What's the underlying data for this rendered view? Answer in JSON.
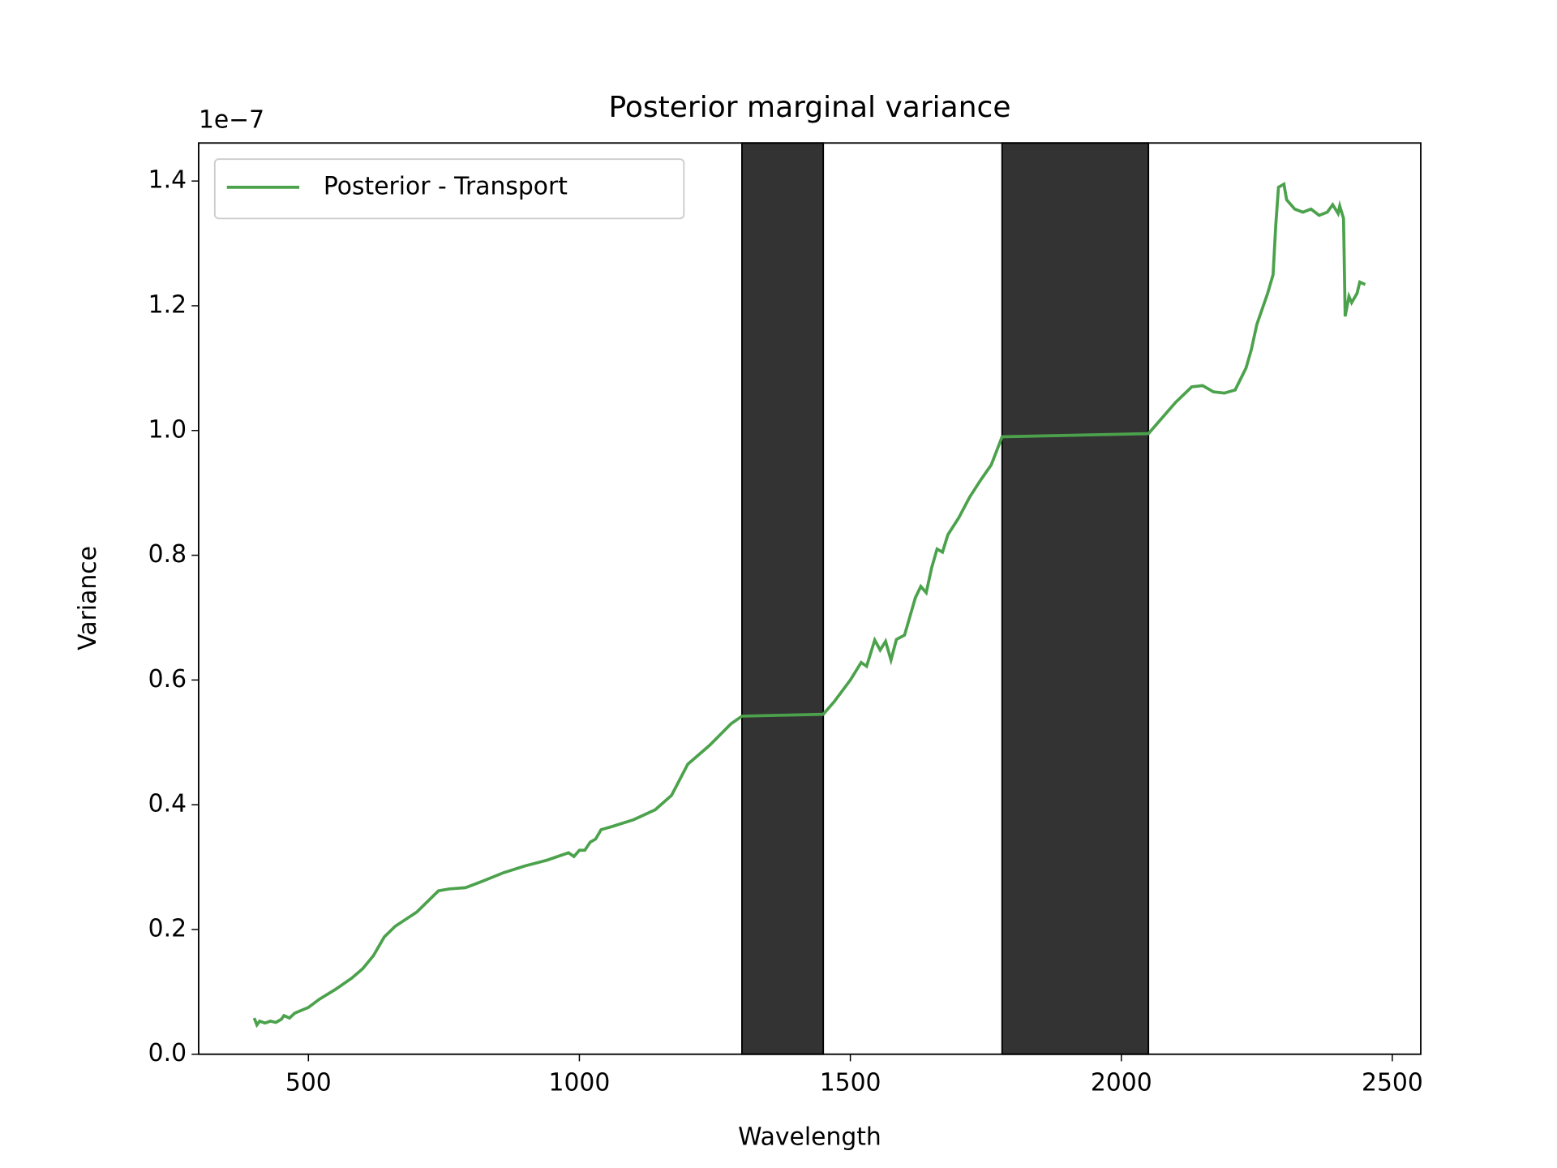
{
  "chart_data": {
    "type": "line",
    "title": "Posterior marginal variance",
    "xlabel": "Wavelength",
    "ylabel": "Variance",
    "y_offset_label": "1e−7",
    "x": [
      400,
      405,
      410,
      420,
      430,
      440,
      450,
      455,
      465,
      475,
      500,
      520,
      550,
      580,
      600,
      620,
      640,
      660,
      700,
      740,
      760,
      790,
      820,
      860,
      900,
      940,
      980,
      990,
      1000,
      1010,
      1020,
      1030,
      1040,
      1060,
      1100,
      1140,
      1170,
      1200,
      1240,
      1280,
      1300,
      1450,
      1470,
      1500,
      1520,
      1530,
      1545,
      1555,
      1565,
      1575,
      1585,
      1600,
      1610,
      1620,
      1630,
      1640,
      1650,
      1660,
      1670,
      1680,
      1700,
      1720,
      1740,
      1760,
      1780,
      2050,
      2070,
      2100,
      2130,
      2150,
      2170,
      2190,
      2210,
      2230,
      2240,
      2250,
      2270,
      2280,
      2285,
      2290,
      2300,
      2305,
      2320,
      2335,
      2350,
      2365,
      2380,
      2390,
      2400,
      2403,
      2410,
      2413,
      2420,
      2425,
      2435,
      2440,
      2450
    ],
    "series": [
      {
        "name": "Posterior - Transport",
        "color": "#4ca24c",
        "values": [
          0.058,
          0.047,
          0.053,
          0.05,
          0.053,
          0.051,
          0.056,
          0.062,
          0.058,
          0.066,
          0.075,
          0.088,
          0.104,
          0.122,
          0.137,
          0.158,
          0.188,
          0.205,
          0.228,
          0.262,
          0.265,
          0.267,
          0.277,
          0.291,
          0.302,
          0.311,
          0.323,
          0.317,
          0.327,
          0.327,
          0.34,
          0.345,
          0.36,
          0.365,
          0.376,
          0.392,
          0.415,
          0.465,
          0.495,
          0.53,
          0.542,
          0.545,
          0.565,
          0.6,
          0.628,
          0.622,
          0.664,
          0.648,
          0.662,
          0.632,
          0.665,
          0.672,
          0.702,
          0.732,
          0.75,
          0.74,
          0.78,
          0.81,
          0.805,
          0.833,
          0.86,
          0.893,
          0.92,
          0.945,
          0.99,
          0.995,
          1.015,
          1.045,
          1.07,
          1.072,
          1.062,
          1.06,
          1.065,
          1.1,
          1.13,
          1.17,
          1.22,
          1.25,
          1.33,
          1.39,
          1.395,
          1.37,
          1.355,
          1.35,
          1.355,
          1.345,
          1.35,
          1.362,
          1.348,
          1.36,
          1.34,
          1.183,
          1.215,
          1.205,
          1.22,
          1.238,
          1.234
        ]
      }
    ],
    "shaded_regions": [
      [
        1300,
        1450
      ],
      [
        1780,
        2050
      ]
    ],
    "shade_color": "#333333",
    "xlim": [
      297.5,
      2552.5
    ],
    "xticks": [
      500,
      1000,
      1500,
      2000,
      2500
    ],
    "ylim": [
      0,
      1.461
    ],
    "yticks": [
      {
        "value": 0,
        "label": "0.0"
      },
      0.2,
      0.4,
      0.6,
      0.8,
      {
        "value": 1,
        "label": "1.0"
      },
      1.2,
      1.4
    ],
    "legend": "upper left",
    "grid": false
  }
}
